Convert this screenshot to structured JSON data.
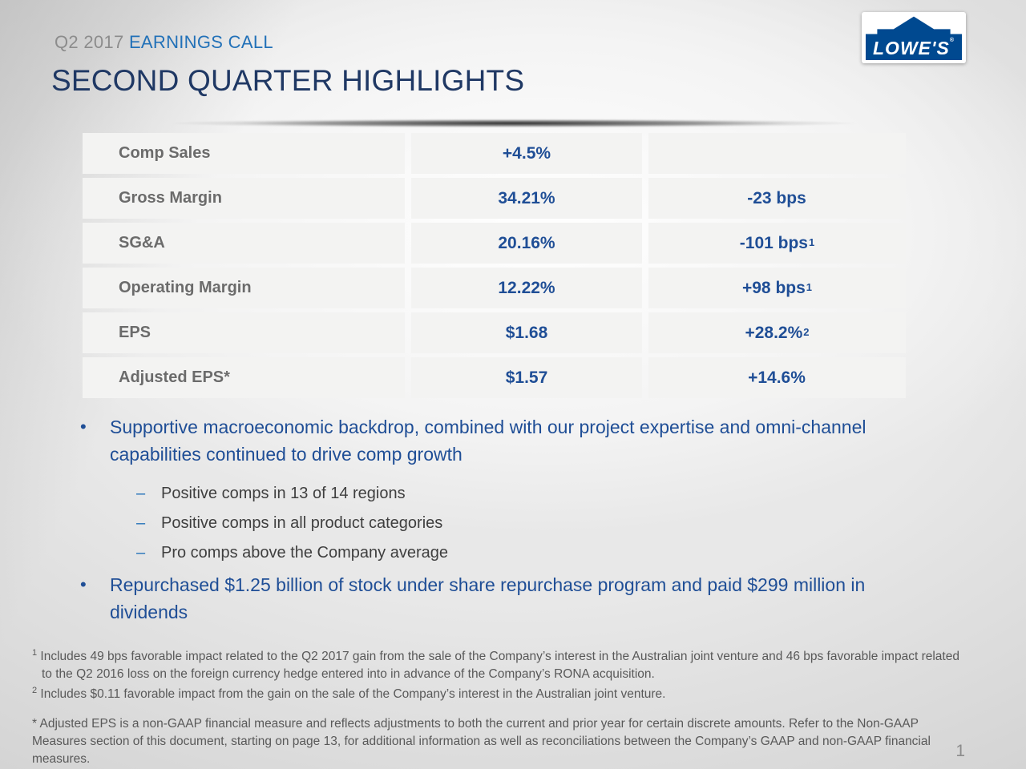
{
  "colors": {
    "accent_blue": "#1F4E96",
    "title_navy": "#1F3864",
    "eyebrow_blue": "#2271B8",
    "logo_blue": "#004990",
    "gray_mid": "#8C8C8C",
    "label_gray": "#6B6B6B",
    "sub_gray": "#3F3F3F",
    "foot_gray": "#595959",
    "cell_bg": "#F3F3F2"
  },
  "header": {
    "quarter": "Q2 2017",
    "eyebrow": "EARNINGS CALL",
    "title": "SECOND QUARTER HIGHLIGHTS"
  },
  "logo": {
    "brand": "LOWE'S",
    "registered": "®"
  },
  "table": {
    "rows": [
      {
        "label": "Comp Sales",
        "value": "+4.5%",
        "change": "",
        "change_sup": ""
      },
      {
        "label": "Gross Margin",
        "value": "34.21%",
        "change": "-23 bps",
        "change_sup": ""
      },
      {
        "label": "SG&A",
        "value": "20.16%",
        "change": "-101 bps",
        "change_sup": "1"
      },
      {
        "label": "Operating Margin",
        "value": "12.22%",
        "change": "+98 bps",
        "change_sup": "1"
      },
      {
        "label": "EPS",
        "value": "$1.68",
        "change": "+28.2%",
        "change_sup": "2"
      },
      {
        "label": "Adjusted EPS*",
        "value": "$1.57",
        "change": "+14.6%",
        "change_sup": ""
      }
    ]
  },
  "bullets": {
    "marker": "•",
    "dash": "–",
    "bullet1": "Supportive macroeconomic backdrop, combined with our project expertise and omni-channel capabilities continued to drive comp growth",
    "sub": [
      "Positive comps in 13 of 14 regions",
      "Positive comps in all product categories",
      "Pro comps above the Company average"
    ],
    "bullet2": "Repurchased $1.25 billion of stock under share repurchase program and paid $299 million in dividends"
  },
  "footnotes": {
    "fn1_sup": "1",
    "fn1": " Includes 49 bps favorable impact related to the Q2 2017 gain from the sale of the Company’s interest in the Australian joint venture and 46 bps favorable impact related to the Q2 2016 loss on the foreign currency hedge entered into in advance of the Company’s RONA acquisition.",
    "fn2_sup": "2",
    "fn2": " Includes $0.11 favorable impact from the gain on the sale of the Company’s interest in the Australian joint venture.",
    "star": "* Adjusted EPS is a non-GAAP financial measure and reflects adjustments to both the current and prior year for certain discrete amounts. Refer to the Non-GAAP Measures section of this document, starting on page 13, for additional information as well as reconciliations between the Company’s GAAP and non-GAAP financial measures."
  },
  "page_number": "1"
}
